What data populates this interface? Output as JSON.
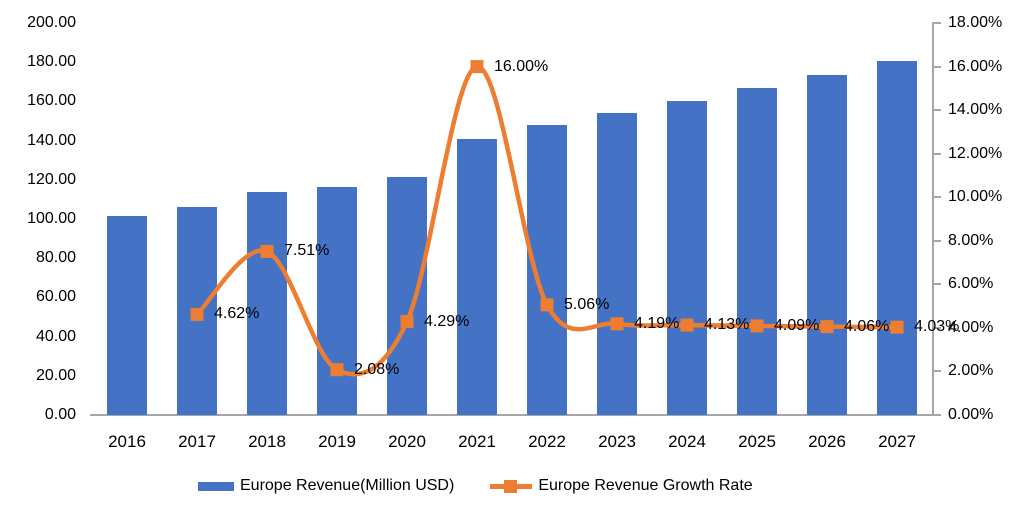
{
  "chart_data": {
    "type": "bar",
    "subtype": "bar-line-combo",
    "categories": [
      "2016",
      "2017",
      "2018",
      "2019",
      "2020",
      "2021",
      "2022",
      "2023",
      "2024",
      "2025",
      "2026",
      "2027"
    ],
    "series": [
      {
        "name": "Europe Revenue(Million USD)",
        "type": "bar",
        "axis": "left",
        "color": "#4472C4",
        "values": [
          101.3,
          106.0,
          114.0,
          116.3,
          121.3,
          140.7,
          147.8,
          154.0,
          160.4,
          166.9,
          173.7,
          180.7
        ]
      },
      {
        "name": "Europe Revenue Growth Rate",
        "type": "line",
        "axis": "right",
        "color": "#ED7D31",
        "smooth": true,
        "values": [
          null,
          4.62,
          7.51,
          2.08,
          4.29,
          16.0,
          5.06,
          4.19,
          4.13,
          4.09,
          4.06,
          4.03
        ],
        "point_labels": [
          null,
          "4.62%",
          "7.51%",
          "2.08%",
          "4.29%",
          "16.00%",
          "5.06%",
          "4.19%",
          "4.13%",
          "4.09%",
          "4.06%",
          "4.03%"
        ]
      }
    ],
    "left_axis": {
      "min": 0,
      "max": 200,
      "tick_labels_top_to_bottom": [
        "200.00",
        "180.00",
        "160.00",
        "140.00",
        "120.00",
        "100.00",
        "80.00",
        "60.00",
        "40.00",
        "20.00",
        "0.00"
      ]
    },
    "right_axis": {
      "min": 0,
      "max": 18,
      "tick_labels_top_to_bottom": [
        "18.00%",
        "16.00%",
        "14.00%",
        "12.00%",
        "10.00%",
        "8.00%",
        "6.00%",
        "4.00%",
        "2.00%",
        "0.00%"
      ]
    },
    "title": "",
    "xlabel": "",
    "ylabel": "",
    "gridlines": false,
    "legend_position": "bottom",
    "axis_line_color": "#A6A6A6",
    "text_color": "#000000",
    "background_color": "#FFFFFF"
  }
}
